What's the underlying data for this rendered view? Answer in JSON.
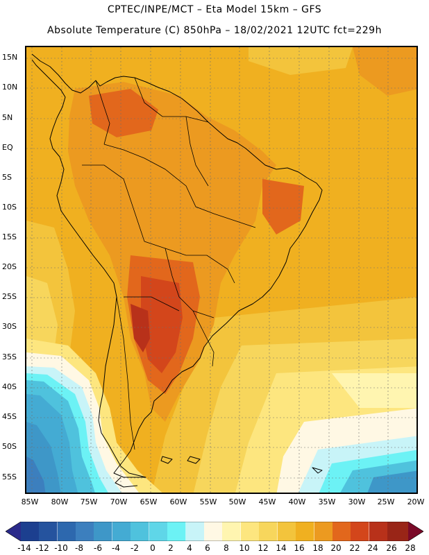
{
  "header": {
    "line1": "CPTEC/INPE/MCT –  Eta Model 15km – GFS",
    "line2": "Absolute Temperature (C) 850hPa – 18/02/2021 12UTC fct=229h"
  },
  "axes": {
    "lat_labels": [
      "15N",
      "10N",
      "5N",
      "EQ",
      "5S",
      "10S",
      "15S",
      "20S",
      "25S",
      "30S",
      "35S",
      "40S",
      "45S",
      "50S",
      "55S"
    ],
    "lon_labels": [
      "85W",
      "80W",
      "75W",
      "70W",
      "65W",
      "60W",
      "55W",
      "50W",
      "45W",
      "40W",
      "35W",
      "30W",
      "25W",
      "20W"
    ]
  },
  "legend": {
    "labels": [
      "-14",
      "-12",
      "-10",
      "-8",
      "-6",
      "-4",
      "-2",
      "0",
      "2",
      "4",
      "6",
      "8",
      "10",
      "12",
      "14",
      "16",
      "18",
      "20",
      "22",
      "24",
      "26",
      "28"
    ],
    "colors": [
      "#1c3f8f",
      "#25539e",
      "#2d68ae",
      "#3c7fbe",
      "#3e97c8",
      "#44abd3",
      "#4fc2dd",
      "#5fd6e8",
      "#6cf2f5",
      "#c8f4f8",
      "#fff8e4",
      "#fff5b0",
      "#fde67f",
      "#f7d65c",
      "#f3c43c",
      "#f0b020",
      "#ec9a20",
      "#e2671c",
      "#d3461b",
      "#b8311a",
      "#992517",
      "#7b1a14"
    ],
    "end_low": "#2a2a8a",
    "end_high": "#7a0a28"
  }
}
